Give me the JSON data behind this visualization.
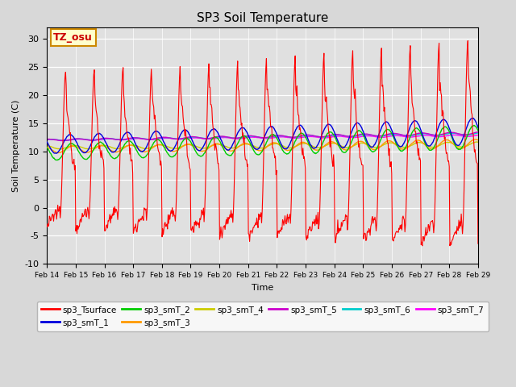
{
  "title": "SP3 Soil Temperature",
  "xlabel": "Time",
  "ylabel": "Soil Temperature (C)",
  "ylim": [
    -10,
    32
  ],
  "bg_color": "#e0e0e0",
  "fig_color": "#d8d8d8",
  "annotation_text": "TZ_osu",
  "annotation_color": "#cc0000",
  "annotation_box_color": "#ffffcc",
  "annotation_box_edge": "#cc8800",
  "xtick_labels": [
    "Feb 14",
    "Feb 15",
    "Feb 16",
    "Feb 17",
    "Feb 18",
    "Feb 19",
    "Feb 20",
    "Feb 21",
    "Feb 22",
    "Feb 23",
    "Feb 24",
    "Feb 25",
    "Feb 26",
    "Feb 27",
    "Feb 28",
    "Feb 29"
  ],
  "yticks": [
    -10,
    -5,
    0,
    5,
    10,
    15,
    20,
    25,
    30
  ],
  "series_colors": {
    "sp3_Tsurface": "#ff0000",
    "sp3_smT_1": "#0000dd",
    "sp3_smT_2": "#00cc00",
    "sp3_smT_3": "#ff9900",
    "sp3_smT_4": "#cccc00",
    "sp3_smT_5": "#cc00cc",
    "sp3_smT_6": "#00cccc",
    "sp3_smT_7": "#ff00ff"
  }
}
